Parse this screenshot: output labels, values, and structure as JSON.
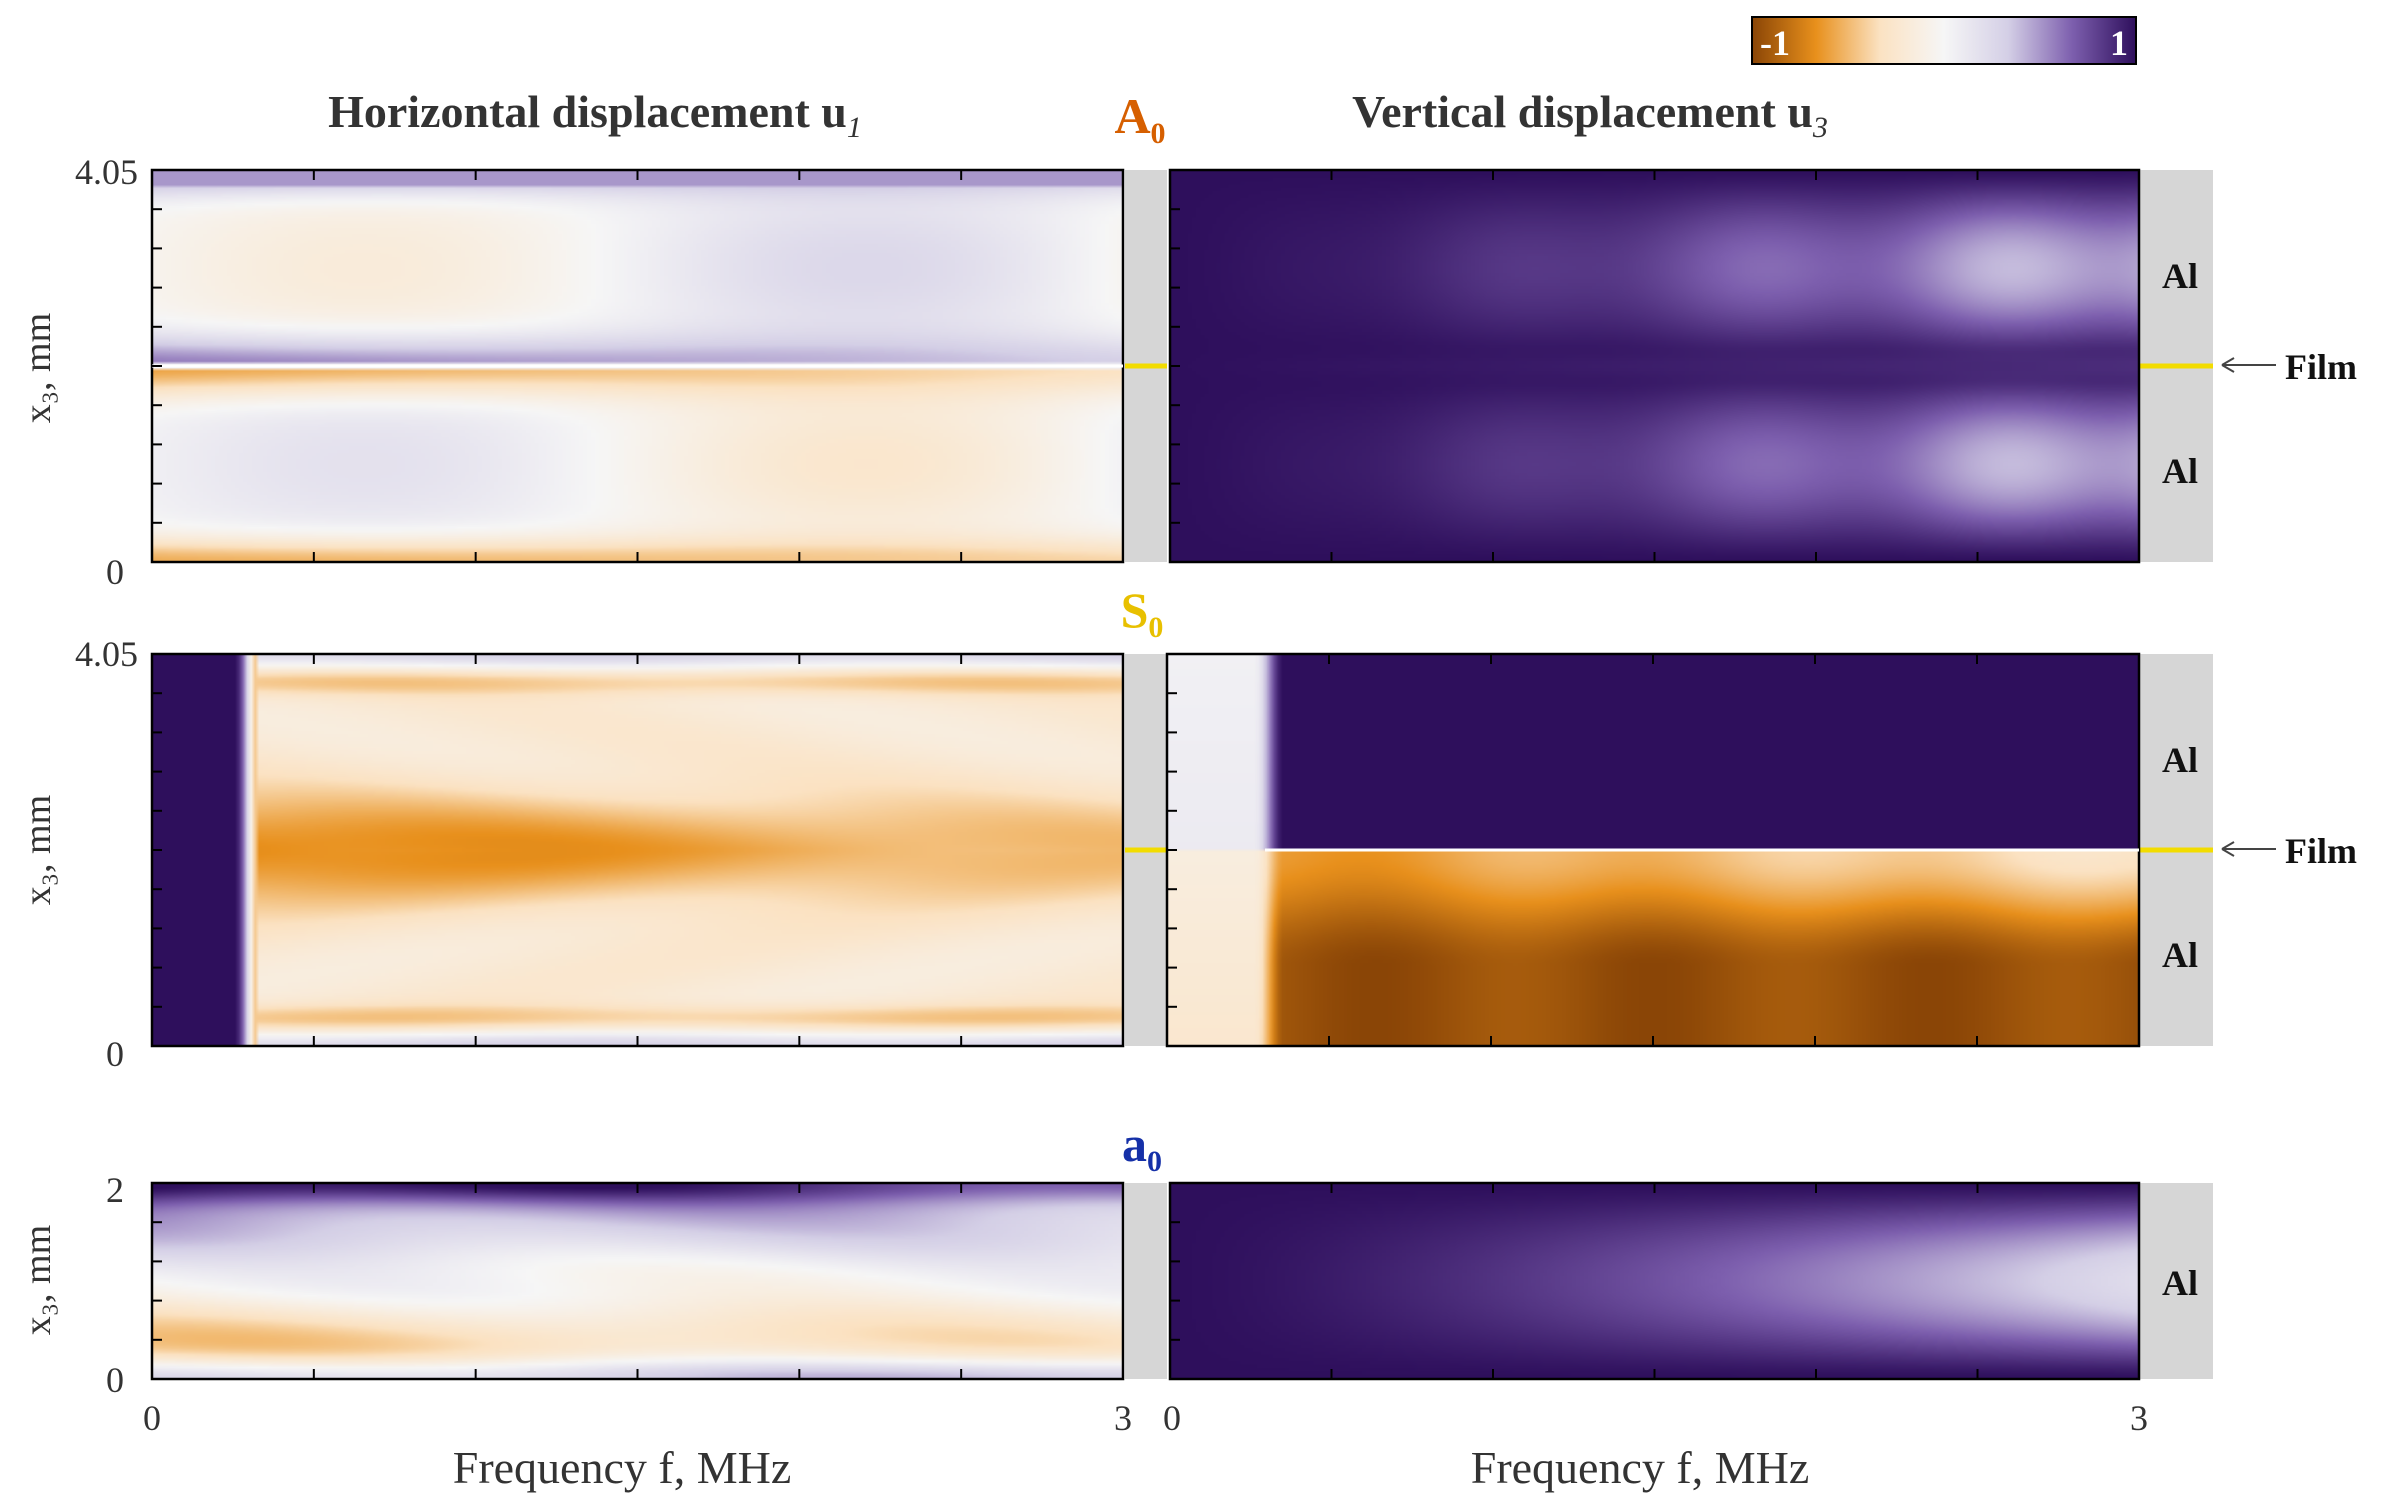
{
  "colorbar": {
    "min_label": "-1",
    "max_label": "1",
    "stops": [
      "#8a4506",
      "#e8901c",
      "#fbe2c2",
      "#f6f6f6",
      "#d4cfe6",
      "#7d5fae",
      "#2e0f5c"
    ]
  },
  "headers": {
    "left": "Horizontal displacement u",
    "left_sub": "1",
    "right": "Vertical displacement u",
    "right_sub": "3"
  },
  "xaxis": {
    "label": "Frequency f, MHz",
    "min_label": "0",
    "max_label": "3"
  },
  "layer": {
    "al": "Al",
    "film": "Film"
  },
  "accent_colors": {
    "A0": "#d65f00",
    "S0": "#e8c000",
    "a0": "#1530a8"
  },
  "chart_data": [
    {
      "type": "heatmap",
      "mode": "A₀",
      "mode_base": "A",
      "mode_sub": "0",
      "ylabel": "x₃, mm",
      "ytick_top": "4.05",
      "ytick_bottom": "0",
      "xlim": [
        0,
        3
      ],
      "ylim": [
        0,
        4.05
      ],
      "layers": [
        "Al",
        "Film",
        "Al"
      ],
      "film_at": 2.025,
      "panels": [
        {
          "quantity": "u1",
          "pattern": "antisym_u1"
        },
        {
          "quantity": "u3",
          "pattern": "antisym_u3"
        }
      ]
    },
    {
      "type": "heatmap",
      "mode": "S₀",
      "mode_base": "S",
      "mode_sub": "0",
      "ylabel": "x₃, mm",
      "ytick_top": "4.05",
      "ytick_bottom": "0",
      "xlim": [
        0,
        3
      ],
      "ylim": [
        0,
        4.05
      ],
      "layers": [
        "Al",
        "Film",
        "Al"
      ],
      "film_at": 2.025,
      "panels": [
        {
          "quantity": "u1",
          "pattern": "sym_u1",
          "sign_change_f": 0.33
        },
        {
          "quantity": "u3",
          "pattern": "sym_u3",
          "sign_change_f": 0.33
        }
      ]
    },
    {
      "type": "heatmap",
      "mode": "a₀",
      "mode_base": "a",
      "mode_sub": "0",
      "ylabel": "x₃, mm",
      "ytick_top": "2",
      "ytick_bottom": "0",
      "xlim": [
        0,
        3
      ],
      "ylim": [
        0,
        2
      ],
      "layers": [
        "Al"
      ],
      "panels": [
        {
          "quantity": "u1",
          "pattern": "single_u1"
        },
        {
          "quantity": "u3",
          "pattern": "single_u3"
        }
      ]
    }
  ]
}
